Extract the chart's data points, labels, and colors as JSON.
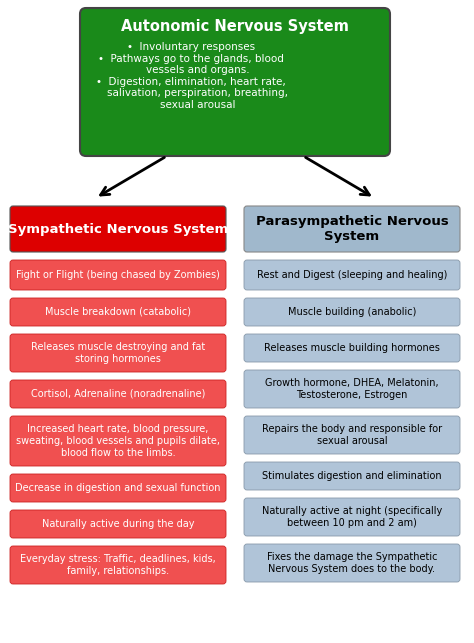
{
  "title": "Autonomic Nervous System",
  "bullet1": "Involuntary responses",
  "bullet2": "Pathways go to the glands, blood\nвessels and organs.",
  "bullet3": "Digestion, elimination, heart rate,\nsalivation, perspiration, breathing,\nsexual arousal",
  "title_bg": "#1a8a1a",
  "title_text_color": "#ffffff",
  "left_header": "Sympathetic Nervous System",
  "right_header": "Parasympathetic Nervous\nSystem",
  "left_header_bg": "#dd0000",
  "right_header_bg": "#a0b8cc",
  "left_header_text_color": "#ffffff",
  "right_header_text_color": "#000000",
  "left_items": [
    "Fight or Flight (being chased by Zombies)",
    "Muscle breakdown (catabolic)",
    "Releases muscle destroying and fat\nstoring hormones",
    "Cortisol, Adrenaline (noradrenaline)",
    "Increased heart rate, blood pressure,\nsweating, blood vessels and pupils dilate,\nblood flow to the limbs.",
    "Decrease in digestion and sexual function",
    "Naturally active during the day",
    "Everyday stress: Traffic, deadlines, kids,\nfamily, relationships."
  ],
  "right_items": [
    "Rest and Digest (sleeping and healing)",
    "Muscle building (anabolic)",
    "Releases muscle building hormones",
    "Growth hormone, DHEA, Melatonin,\nTestosterone, Estrogen",
    "Repairs the body and responsible for\nsexual arousal",
    "Stimulates digestion and elimination",
    "Naturally active at night (specifically\nbetween 10 pm and 2 am)",
    "Fixes the damage the Sympathetic\nNervous System does to the body."
  ],
  "left_item_bg": "#f05050",
  "right_item_bg": "#b0c4d8",
  "left_item_text": "#ffffff",
  "right_item_text": "#000000",
  "bg_color": "#ffffff",
  "left_item_heights": [
    30,
    28,
    38,
    28,
    50,
    28,
    28,
    38
  ],
  "right_item_heights": [
    30,
    28,
    28,
    38,
    38,
    28,
    38,
    38
  ]
}
